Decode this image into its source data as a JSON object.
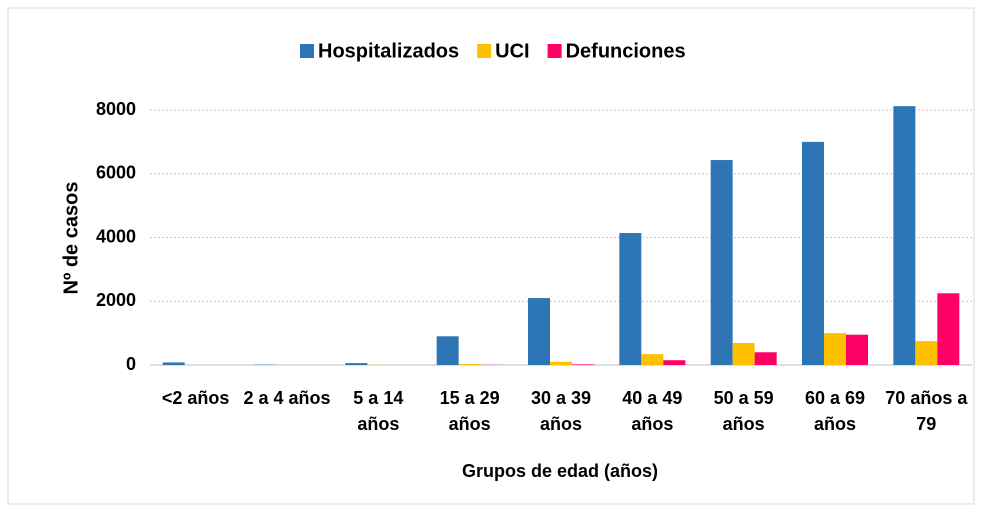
{
  "chart_data": {
    "type": "bar",
    "x_label": "Grupos de edad (años)",
    "y_label": "Nº de casos",
    "categories": [
      "<2 años",
      "2 a 4 años",
      "5 a 14 años",
      "15 a 29 años",
      "30 a 39 años",
      "40 a 49 años",
      "50 a 59 años",
      "60 a 69 años",
      "70 años a 79"
    ],
    "series": [
      {
        "name": "Hospitalizados",
        "color": "#2e75b6",
        "values": [
          80,
          10,
          60,
          900,
          2100,
          4140,
          6430,
          7000,
          8120
        ]
      },
      {
        "name": "UCI",
        "color": "#ffc000",
        "values": [
          0,
          0,
          5,
          30,
          100,
          340,
          690,
          1000,
          750
        ]
      },
      {
        "name": "Defunciones",
        "color": "#ff0066",
        "values": [
          0,
          0,
          0,
          5,
          20,
          150,
          400,
          950,
          2250
        ]
      }
    ],
    "ylim": [
      0,
      8000
    ],
    "yticks": [
      0,
      2000,
      4000,
      6000,
      8000
    ],
    "grid": true,
    "legend": "top"
  }
}
